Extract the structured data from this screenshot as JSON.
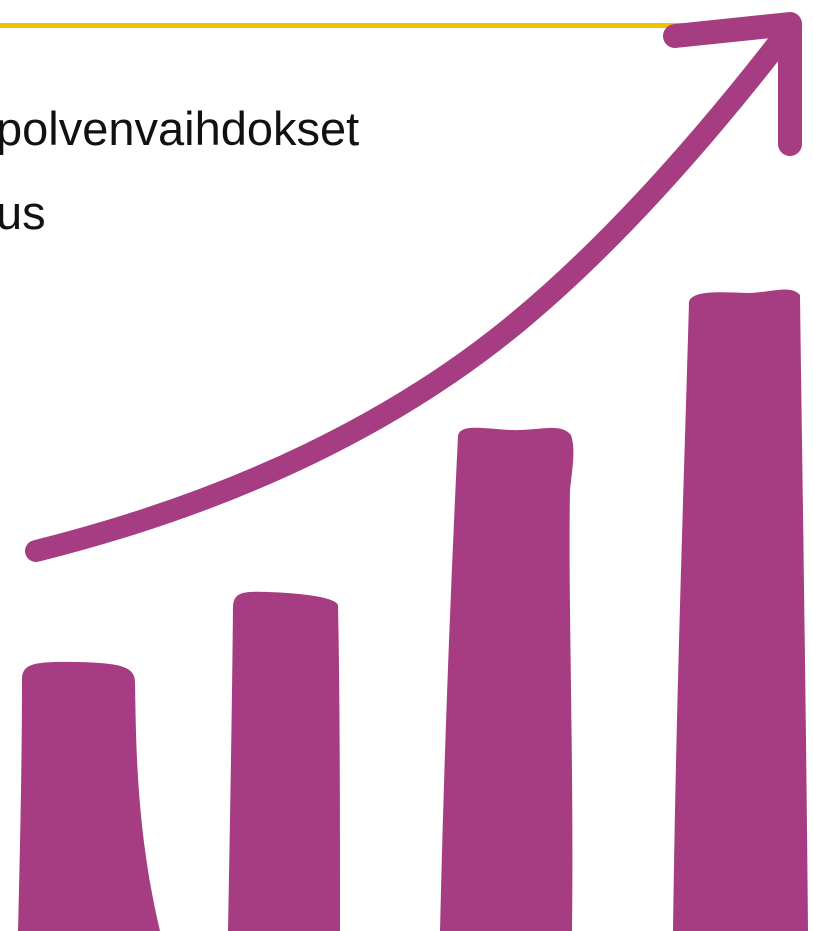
{
  "slide": {
    "bullets": [
      "polvenvaihdokset",
      "us"
    ]
  },
  "illustration": {
    "kind": "growth bar chart with rising arrow",
    "bar_count": 4,
    "bar_heights_relative": [
      0.42,
      0.55,
      0.78,
      1.0
    ],
    "bar_color": "#a63d82",
    "arrow_color": "#a63d82",
    "accent_line_color": "#ecc400"
  }
}
